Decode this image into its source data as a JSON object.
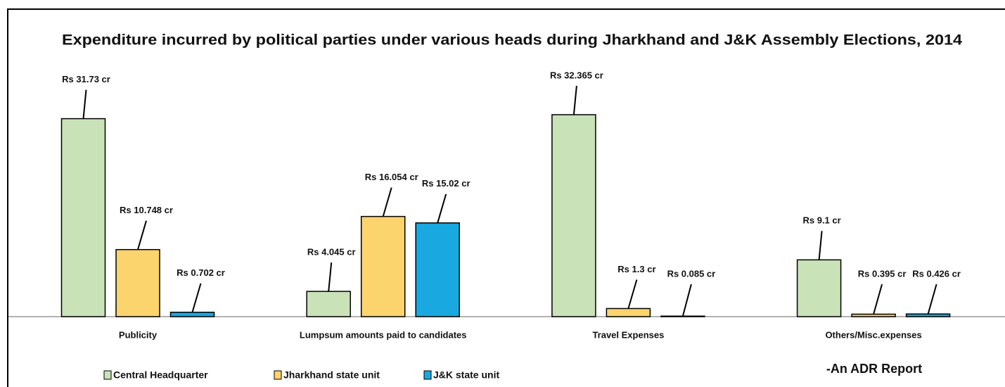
{
  "chart_data": {
    "type": "bar",
    "title": "Expenditure incurred by political parties under various heads during Jharkhand and J&K Assembly Elections, 2014",
    "categories": [
      "Publicity",
      "Lumpsum amounts paid to candidates",
      "Travel Expenses",
      "Others/Misc.expenses"
    ],
    "series": [
      {
        "name": "Central Headquarter",
        "color": "#c9e2b8",
        "values": [
          31.73,
          4.045,
          32.365,
          9.1
        ],
        "value_labels": [
          "Rs 31.73 cr",
          "Rs 4.045 cr",
          "Rs 32.365 cr",
          "Rs 9.1 cr"
        ]
      },
      {
        "name": "Jharkhand state unit",
        "color": "#fcd46d",
        "values": [
          10.748,
          16.054,
          1.3,
          0.395
        ],
        "value_labels": [
          "Rs 10.748 cr",
          "Rs 16.054 cr",
          "Rs 1.3 cr",
          "Rs 0.395 cr"
        ]
      },
      {
        "name": "J&K state unit",
        "color": "#19a8e0",
        "values": [
          0.702,
          15.02,
          0.085,
          0.426
        ],
        "value_labels": [
          "Rs 0.702 cr",
          "Rs 15.02 cr",
          "Rs 0.085 cr",
          "Rs 0.426 cr"
        ]
      }
    ],
    "annotation": "-An ADR Report"
  }
}
